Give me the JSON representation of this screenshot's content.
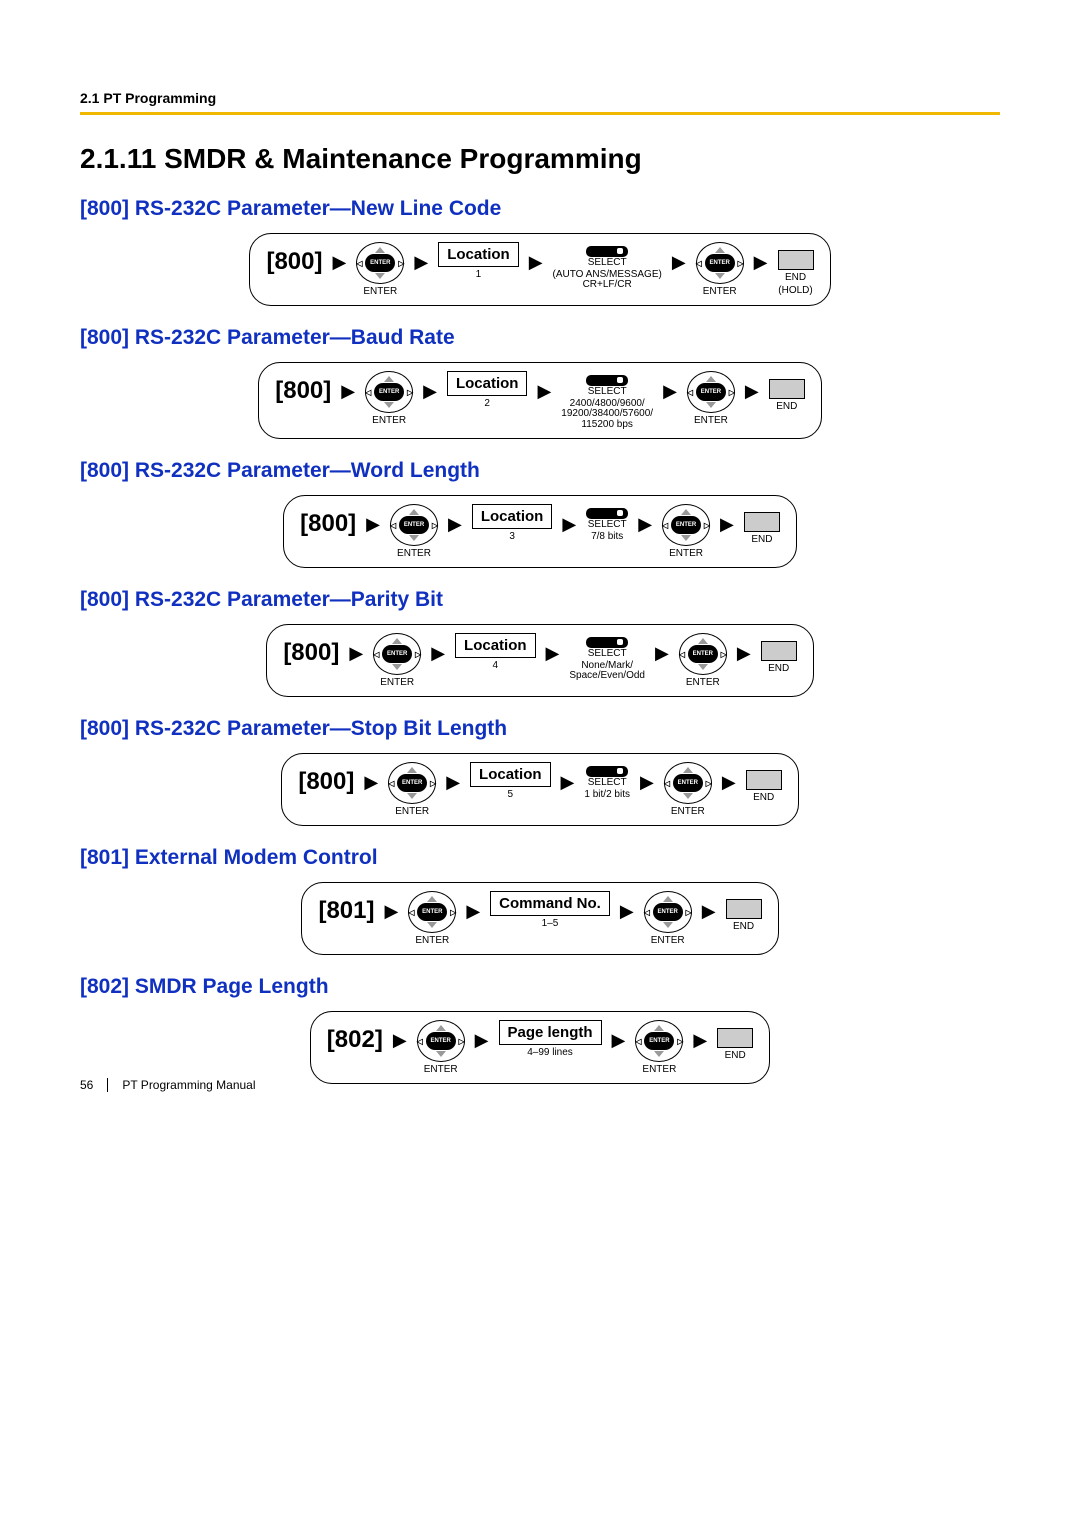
{
  "header": {
    "section": "2.1 PT Programming"
  },
  "main_title": "2.1.11  SMDR & Maintenance Programming",
  "items": [
    {
      "title": "[800] RS-232C Parameter—New Line Code",
      "code": "[800]",
      "loc_label": "Location",
      "loc_sub": "1",
      "sel_label": "SELECT",
      "sel_sub": "(AUTO ANS/MESSAGE)\nCR+LF/CR",
      "has_select": true,
      "enter2_label": "ENTER",
      "end_label": "END",
      "end_sub": "(HOLD)"
    },
    {
      "title": "[800] RS-232C Parameter—Baud Rate",
      "code": "[800]",
      "loc_label": "Location",
      "loc_sub": "2",
      "sel_label": "SELECT",
      "sel_sub": "2400/4800/9600/\n19200/38400/57600/\n115200 bps",
      "has_select": true,
      "enter2_label": "ENTER",
      "end_label": "END",
      "end_sub": ""
    },
    {
      "title": "[800] RS-232C Parameter—Word Length",
      "code": "[800]",
      "loc_label": "Location",
      "loc_sub": "3",
      "sel_label": "SELECT",
      "sel_sub": "7/8 bits",
      "has_select": true,
      "enter2_label": "ENTER",
      "end_label": "END",
      "end_sub": ""
    },
    {
      "title": "[800] RS-232C Parameter—Parity Bit",
      "code": "[800]",
      "loc_label": "Location",
      "loc_sub": "4",
      "sel_label": "SELECT",
      "sel_sub": "None/Mark/\nSpace/Even/Odd",
      "has_select": true,
      "enter2_label": "ENTER",
      "end_label": "END",
      "end_sub": ""
    },
    {
      "title": "[800] RS-232C Parameter—Stop Bit Length",
      "code": "[800]",
      "loc_label": "Location",
      "loc_sub": "5",
      "sel_label": "SELECT",
      "sel_sub": "1 bit/2 bits",
      "has_select": true,
      "enter2_label": "ENTER",
      "end_label": "END",
      "end_sub": ""
    },
    {
      "title": "[801] External Modem Control",
      "code": "[801]",
      "loc_label": "Command No.",
      "loc_sub": "1–5",
      "has_select": false,
      "enter2_label": "ENTER",
      "end_label": "END",
      "end_sub": ""
    },
    {
      "title": "[802] SMDR Page Length",
      "code": "[802]",
      "loc_label": "Page length",
      "loc_sub": "4–99 lines",
      "has_select": false,
      "enter2_label": "ENTER",
      "end_label": "END",
      "end_sub": ""
    }
  ],
  "enter_label": "ENTER",
  "enter_btn_text": "ENTER",
  "footer": {
    "page": "56",
    "manual": "PT Programming Manual"
  },
  "colors": {
    "accent_rule": "#f0b800",
    "link_blue": "#1030c0"
  }
}
